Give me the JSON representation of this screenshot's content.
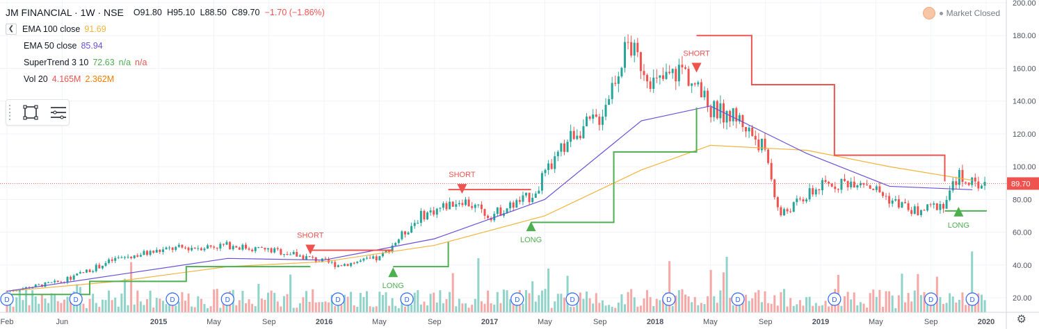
{
  "header": {
    "symbol_title": "JM FINANCIAL · 1W · NSE",
    "open": "O91.80",
    "high": "H95.10",
    "low": "L88.50",
    "close": "C89.70",
    "change": "−1.70 (−1.86%)",
    "market_status": "Market Closed"
  },
  "indicators": [
    {
      "label": "EMA 100 close",
      "value": "91.69",
      "color": "#f2b43c"
    },
    {
      "label": "EMA 50 close",
      "value": "85.94",
      "color": "#6a4fd8"
    },
    {
      "label": "SuperTrend 3 10",
      "value": "72.63",
      "value2": "n/a",
      "value3": "n/a",
      "color": "#4caf50",
      "color3": "#ef5350"
    },
    {
      "label": "Vol 20",
      "value": "4.165M",
      "value2": "2.362M",
      "color": "#ef5350",
      "color2": "#f57c00"
    }
  ],
  "price_axis": {
    "ticks": [
      "200.00",
      "180.00",
      "160.00",
      "140.00",
      "120.00",
      "100.00",
      "80.00",
      "60.00",
      "40.00",
      "20.00"
    ],
    "last_price": "89.70"
  },
  "time_axis": {
    "labels": [
      "Feb",
      "Jun",
      "2015",
      "May",
      "Sep",
      "2016",
      "May",
      "Sep",
      "2017",
      "May",
      "Sep",
      "2018",
      "May",
      "Sep",
      "2019",
      "May",
      "Sep",
      "2020"
    ]
  },
  "colors": {
    "up": "#26a69a",
    "down": "#ef5350",
    "ema100": "#f2b43c",
    "ema50": "#6a4fd8",
    "supertrend_up": "#4caf50",
    "supertrend_down": "#ef5350",
    "vol_up": "#8fd3c9",
    "vol_down": "#f5a8a6"
  },
  "chart_data": {
    "type": "candlestick",
    "title": "JM FINANCIAL · 1W · NSE",
    "y_range": [
      10,
      205
    ],
    "x_range": [
      "2014-02",
      "2020-01"
    ],
    "series_ema100": {
      "name": "EMA 100 close",
      "x": [
        "2014-02",
        "2014-10",
        "2015-06",
        "2016-01",
        "2016-09",
        "2017-05",
        "2017-12",
        "2018-05",
        "2018-12",
        "2019-06",
        "2019-12"
      ],
      "y": [
        24,
        30,
        39,
        42,
        52,
        70,
        98,
        113,
        110,
        100,
        91.69
      ]
    },
    "series_ema50": {
      "name": "EMA 50 close",
      "x": [
        "2014-02",
        "2014-10",
        "2015-06",
        "2016-01",
        "2016-09",
        "2017-05",
        "2017-12",
        "2018-05",
        "2018-12",
        "2019-06",
        "2019-12"
      ],
      "y": [
        24,
        34,
        44,
        43,
        56,
        80,
        128,
        137,
        108,
        88,
        85.94
      ]
    },
    "supertrend": {
      "name": "SuperTrend 3 10",
      "segments": [
        {
          "dir": "up",
          "x": [
            "2014-02",
            "2014-08",
            "2015-03",
            "2015-12"
          ],
          "y": [
            22,
            30,
            39,
            39
          ]
        },
        {
          "dir": "down",
          "x": [
            "2015-12",
            "2016-06"
          ],
          "y": [
            49,
            49
          ]
        },
        {
          "dir": "up",
          "x": [
            "2016-06",
            "2016-10"
          ],
          "y": [
            39,
            54
          ]
        },
        {
          "dir": "down",
          "x": [
            "2016-10",
            "2017-04"
          ],
          "y": [
            86,
            86
          ]
        },
        {
          "dir": "up",
          "x": [
            "2017-04",
            "2017-10",
            "2018-04"
          ],
          "y": [
            66,
            109,
            136
          ]
        },
        {
          "dir": "down",
          "x": [
            "2018-04",
            "2018-08",
            "2019-02",
            "2019-10"
          ],
          "y": [
            180,
            150,
            107,
            91
          ]
        },
        {
          "dir": "up",
          "x": [
            "2019-10",
            "2020-01"
          ],
          "y": [
            73,
            72.63
          ]
        }
      ]
    },
    "signals": [
      {
        "label": "SHORT",
        "date": "2015-12",
        "price": 49
      },
      {
        "label": "LONG",
        "date": "2016-06",
        "price": 36
      },
      {
        "label": "SHORT",
        "date": "2016-11",
        "price": 86
      },
      {
        "label": "LONG",
        "date": "2017-04",
        "price": 64
      },
      {
        "label": "SHORT",
        "date": "2018-04",
        "price": 160
      },
      {
        "label": "LONG",
        "date": "2019-11",
        "price": 73
      }
    ],
    "dividend_markers": [
      "2014-02",
      "2014-07",
      "2015-02",
      "2015-06",
      "2016-02",
      "2016-07",
      "2017-03",
      "2017-07",
      "2018-02",
      "2018-07",
      "2019-02",
      "2019-09",
      "2019-12"
    ],
    "marker_label": "D",
    "close_path": {
      "x": [
        "2014-02",
        "2014-06",
        "2014-10",
        "2015-02",
        "2015-06",
        "2015-10",
        "2016-02",
        "2016-05",
        "2016-08",
        "2016-11",
        "2017-01",
        "2017-04",
        "2017-07",
        "2017-09",
        "2017-11",
        "2018-01",
        "2018-03",
        "2018-05",
        "2018-07",
        "2018-09",
        "2018-10",
        "2019-01",
        "2019-04",
        "2019-06",
        "2019-08",
        "2019-10",
        "2019-11",
        "2019-12"
      ],
      "y": [
        24,
        30,
        44,
        50,
        52,
        48,
        40,
        44,
        70,
        80,
        70,
        82,
        120,
        130,
        175,
        150,
        160,
        135,
        130,
        110,
        70,
        88,
        92,
        80,
        72,
        78,
        95,
        89.7
      ]
    }
  }
}
